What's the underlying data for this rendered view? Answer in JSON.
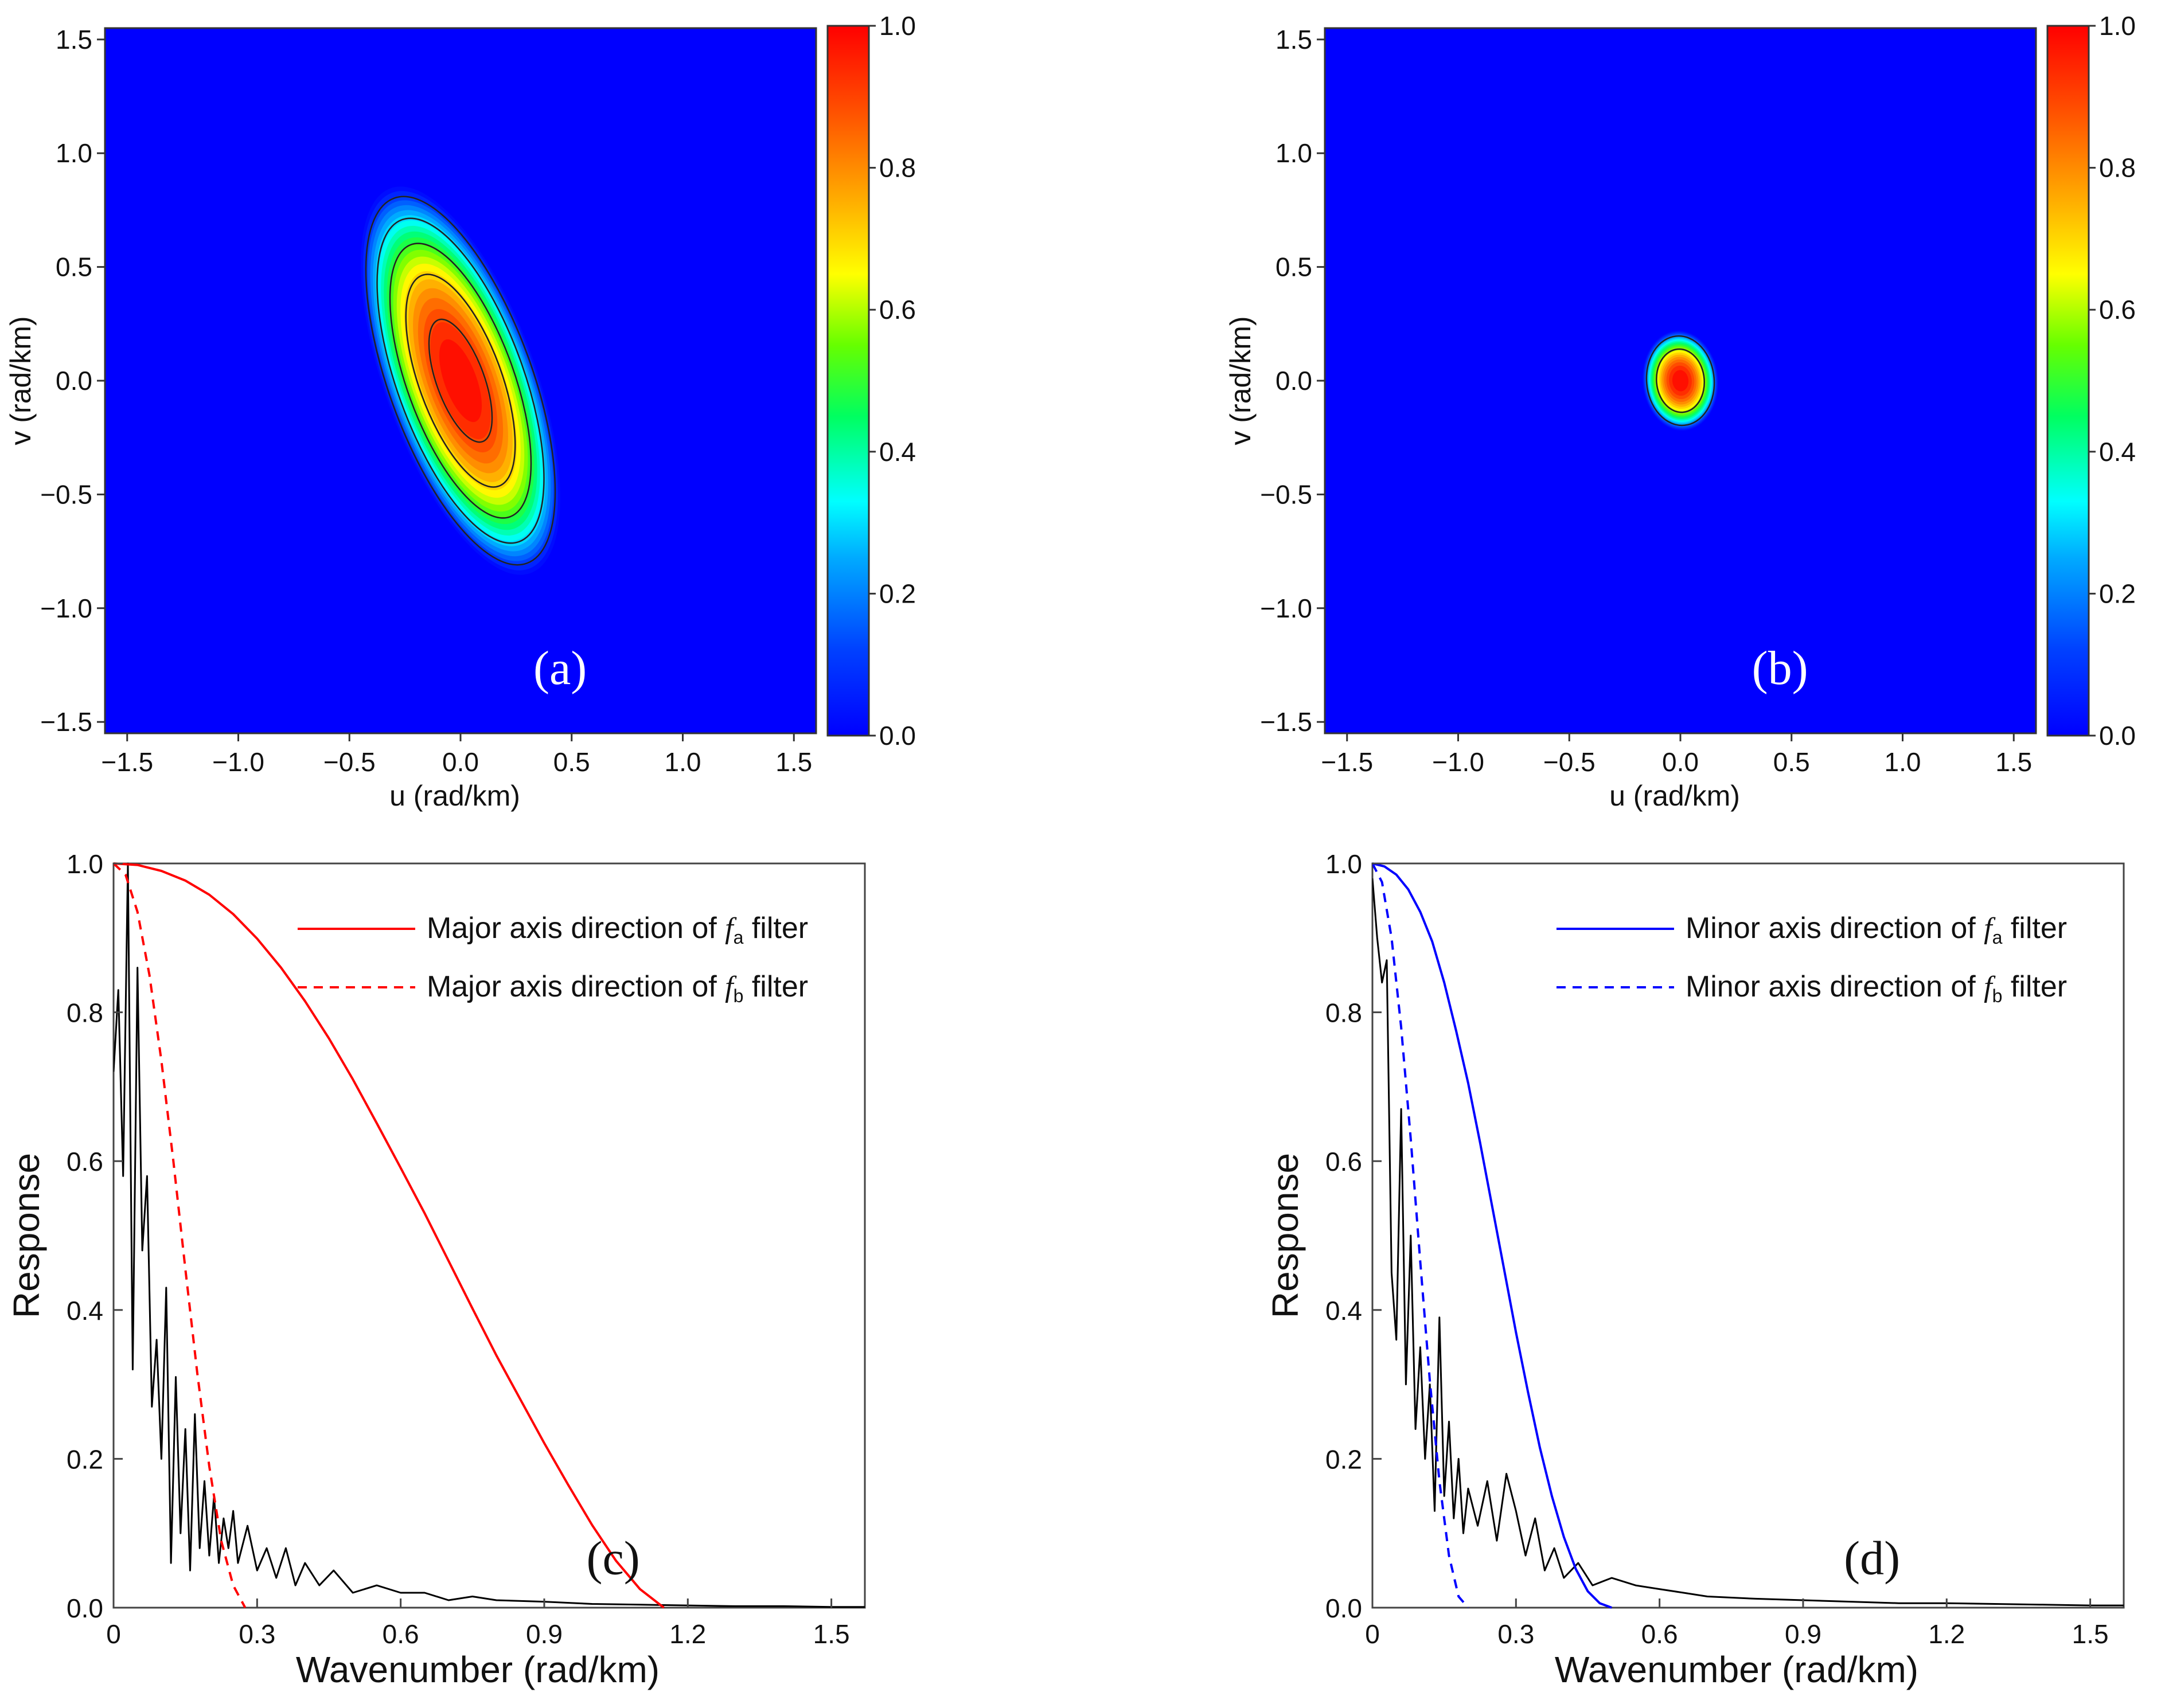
{
  "chart_data": [
    {
      "panel": "(a)",
      "type": "heatmap",
      "xlabel": "u (rad/km)",
      "ylabel": "v (rad/km)",
      "xlim": [
        -1.6,
        1.6
      ],
      "ylim": [
        -1.55,
        1.55
      ],
      "xticks": [
        "−1.5",
        "−1.0",
        "−0.5",
        "0.0",
        "0.5",
        "1.0",
        "1.5"
      ],
      "yticks": [
        "1.5",
        "1.0",
        "0.5",
        "0.0",
        "−0.5",
        "−1.0",
        "−1.5"
      ],
      "colorbar": {
        "min": 0,
        "max": 1,
        "ticks": [
          "1.0",
          "0.8",
          "0.6",
          "0.4",
          "0.2",
          "0.0"
        ]
      },
      "surface": {
        "center": [
          0.0,
          0.0
        ],
        "semi_major": 0.9,
        "semi_minor": 0.34,
        "tilt_deg": -20,
        "peak": 1.0
      },
      "contour_levels": [
        0.1,
        0.3,
        0.5,
        0.7,
        0.9
      ]
    },
    {
      "panel": "(b)",
      "type": "heatmap",
      "xlabel": "u (rad/km)",
      "ylabel": "v (rad/km)",
      "xlim": [
        -1.6,
        1.6
      ],
      "ylim": [
        -1.55,
        1.55
      ],
      "xticks": [
        "−1.5",
        "−1.0",
        "−0.5",
        "0.0",
        "0.5",
        "1.0",
        "1.5"
      ],
      "yticks": [
        "1.5",
        "1.0",
        "0.5",
        "0.0",
        "−0.5",
        "−1.0",
        "−1.5"
      ],
      "colorbar": {
        "min": 0,
        "max": 1,
        "ticks": [
          "1.0",
          "0.8",
          "0.6",
          "0.4",
          "0.2",
          "0.0"
        ]
      },
      "surface": {
        "center": [
          0.0,
          0.0
        ],
        "semi_major": 0.22,
        "semi_minor": 0.17,
        "tilt_deg": -5,
        "peak": 1.0
      },
      "contour_levels": [
        0.2,
        0.6
      ]
    },
    {
      "panel": "(c)",
      "type": "line",
      "xlabel": "Wavenumber (rad/km)",
      "ylabel": "Response",
      "xlim": [
        0,
        1.57
      ],
      "ylim": [
        0,
        1.0
      ],
      "xticks": [
        "0",
        "0.3",
        "0.6",
        "0.9",
        "1.2",
        "1.5"
      ],
      "yticks": [
        "0.0",
        "0.2",
        "0.4",
        "0.6",
        "0.8",
        "1.0"
      ],
      "legend_position": "top-right",
      "series": [
        {
          "label_prefix": "Major axis direction of ",
          "label_symbol": "f",
          "label_sub": "a",
          "label_suffix": " filter",
          "color": "#ff0000",
          "dash": false,
          "x": [
            0,
            0.05,
            0.1,
            0.15,
            0.2,
            0.25,
            0.3,
            0.35,
            0.4,
            0.45,
            0.5,
            0.55,
            0.6,
            0.65,
            0.7,
            0.75,
            0.8,
            0.85,
            0.9,
            0.95,
            1.0,
            1.05,
            1.1,
            1.15
          ],
          "y": [
            1.0,
            0.998,
            0.99,
            0.977,
            0.958,
            0.932,
            0.899,
            0.86,
            0.815,
            0.765,
            0.71,
            0.651,
            0.591,
            0.53,
            0.466,
            0.402,
            0.339,
            0.28,
            0.221,
            0.165,
            0.111,
            0.063,
            0.025,
            0.0
          ]
        },
        {
          "label_prefix": "Major axis direction of ",
          "label_symbol": "f",
          "label_sub": "b",
          "label_suffix": " filter",
          "color": "#ff0000",
          "dash": true,
          "x": [
            0,
            0.025,
            0.05,
            0.075,
            0.1,
            0.125,
            0.15,
            0.175,
            0.2,
            0.225,
            0.25,
            0.275
          ],
          "y": [
            1.0,
            0.985,
            0.935,
            0.85,
            0.735,
            0.6,
            0.455,
            0.315,
            0.19,
            0.09,
            0.03,
            0.0
          ]
        },
        {
          "label": "",
          "color": "#000000",
          "dash": false,
          "x": [
            0,
            0.01,
            0.02,
            0.03,
            0.04,
            0.05,
            0.06,
            0.07,
            0.08,
            0.09,
            0.1,
            0.11,
            0.12,
            0.13,
            0.14,
            0.15,
            0.16,
            0.17,
            0.18,
            0.19,
            0.2,
            0.21,
            0.22,
            0.23,
            0.24,
            0.25,
            0.26,
            0.28,
            0.3,
            0.32,
            0.34,
            0.36,
            0.38,
            0.4,
            0.43,
            0.46,
            0.5,
            0.55,
            0.6,
            0.65,
            0.7,
            0.75,
            0.8,
            0.9,
            1.0,
            1.1,
            1.2,
            1.3,
            1.4,
            1.5,
            1.57
          ],
          "y": [
            0.72,
            0.83,
            0.58,
            1.0,
            0.32,
            0.86,
            0.48,
            0.58,
            0.27,
            0.36,
            0.2,
            0.43,
            0.06,
            0.31,
            0.1,
            0.24,
            0.05,
            0.26,
            0.08,
            0.17,
            0.07,
            0.15,
            0.06,
            0.12,
            0.08,
            0.13,
            0.06,
            0.11,
            0.05,
            0.08,
            0.04,
            0.08,
            0.03,
            0.06,
            0.03,
            0.05,
            0.02,
            0.03,
            0.02,
            0.02,
            0.01,
            0.015,
            0.01,
            0.008,
            0.005,
            0.004,
            0.003,
            0.002,
            0.002,
            0.001,
            0.001
          ]
        }
      ]
    },
    {
      "panel": "(d)",
      "type": "line",
      "xlabel": "Wavenumber (rad/km)",
      "ylabel": "Response",
      "xlim": [
        0,
        1.57
      ],
      "ylim": [
        0,
        1.0
      ],
      "xticks": [
        "0",
        "0.3",
        "0.6",
        "0.9",
        "1.2",
        "1.5"
      ],
      "yticks": [
        "0.0",
        "0.2",
        "0.4",
        "0.6",
        "0.8",
        "1.0"
      ],
      "legend_position": "top-right",
      "series": [
        {
          "label_prefix": "Minor axis direction of ",
          "label_symbol": "f",
          "label_sub": "a",
          "label_suffix": " filter",
          "color": "#0000ff",
          "dash": false,
          "x": [
            0,
            0.025,
            0.05,
            0.075,
            0.1,
            0.125,
            0.15,
            0.175,
            0.2,
            0.225,
            0.25,
            0.275,
            0.3,
            0.325,
            0.35,
            0.375,
            0.4,
            0.425,
            0.45,
            0.475,
            0.5
          ],
          "y": [
            1.0,
            0.996,
            0.985,
            0.965,
            0.935,
            0.895,
            0.84,
            0.775,
            0.705,
            0.625,
            0.54,
            0.455,
            0.37,
            0.29,
            0.215,
            0.15,
            0.095,
            0.052,
            0.022,
            0.006,
            0.0
          ]
        },
        {
          "label_prefix": "Minor axis direction of ",
          "label_symbol": "f",
          "label_sub": "b",
          "label_suffix": " filter",
          "color": "#0000ff",
          "dash": true,
          "x": [
            0,
            0.02,
            0.04,
            0.06,
            0.08,
            0.1,
            0.12,
            0.14,
            0.16,
            0.18,
            0.2
          ],
          "y": [
            1.0,
            0.975,
            0.9,
            0.78,
            0.63,
            0.465,
            0.305,
            0.17,
            0.07,
            0.015,
            0.0
          ]
        },
        {
          "label": "",
          "color": "#000000",
          "dash": false,
          "x": [
            0,
            0.01,
            0.02,
            0.03,
            0.04,
            0.05,
            0.06,
            0.07,
            0.08,
            0.09,
            0.1,
            0.11,
            0.12,
            0.13,
            0.14,
            0.15,
            0.16,
            0.17,
            0.18,
            0.19,
            0.2,
            0.22,
            0.24,
            0.26,
            0.28,
            0.3,
            0.32,
            0.34,
            0.36,
            0.38,
            0.4,
            0.43,
            0.46,
            0.5,
            0.55,
            0.6,
            0.65,
            0.7,
            0.8,
            0.9,
            1.0,
            1.1,
            1.2,
            1.3,
            1.4,
            1.5,
            1.57
          ],
          "y": [
            0.98,
            0.9,
            0.84,
            0.87,
            0.45,
            0.36,
            0.67,
            0.3,
            0.5,
            0.24,
            0.35,
            0.2,
            0.3,
            0.13,
            0.39,
            0.15,
            0.25,
            0.12,
            0.2,
            0.1,
            0.16,
            0.11,
            0.17,
            0.09,
            0.18,
            0.13,
            0.07,
            0.12,
            0.05,
            0.08,
            0.04,
            0.06,
            0.03,
            0.04,
            0.03,
            0.025,
            0.02,
            0.015,
            0.012,
            0.01,
            0.008,
            0.006,
            0.006,
            0.005,
            0.004,
            0.003,
            0.003
          ]
        }
      ]
    }
  ]
}
